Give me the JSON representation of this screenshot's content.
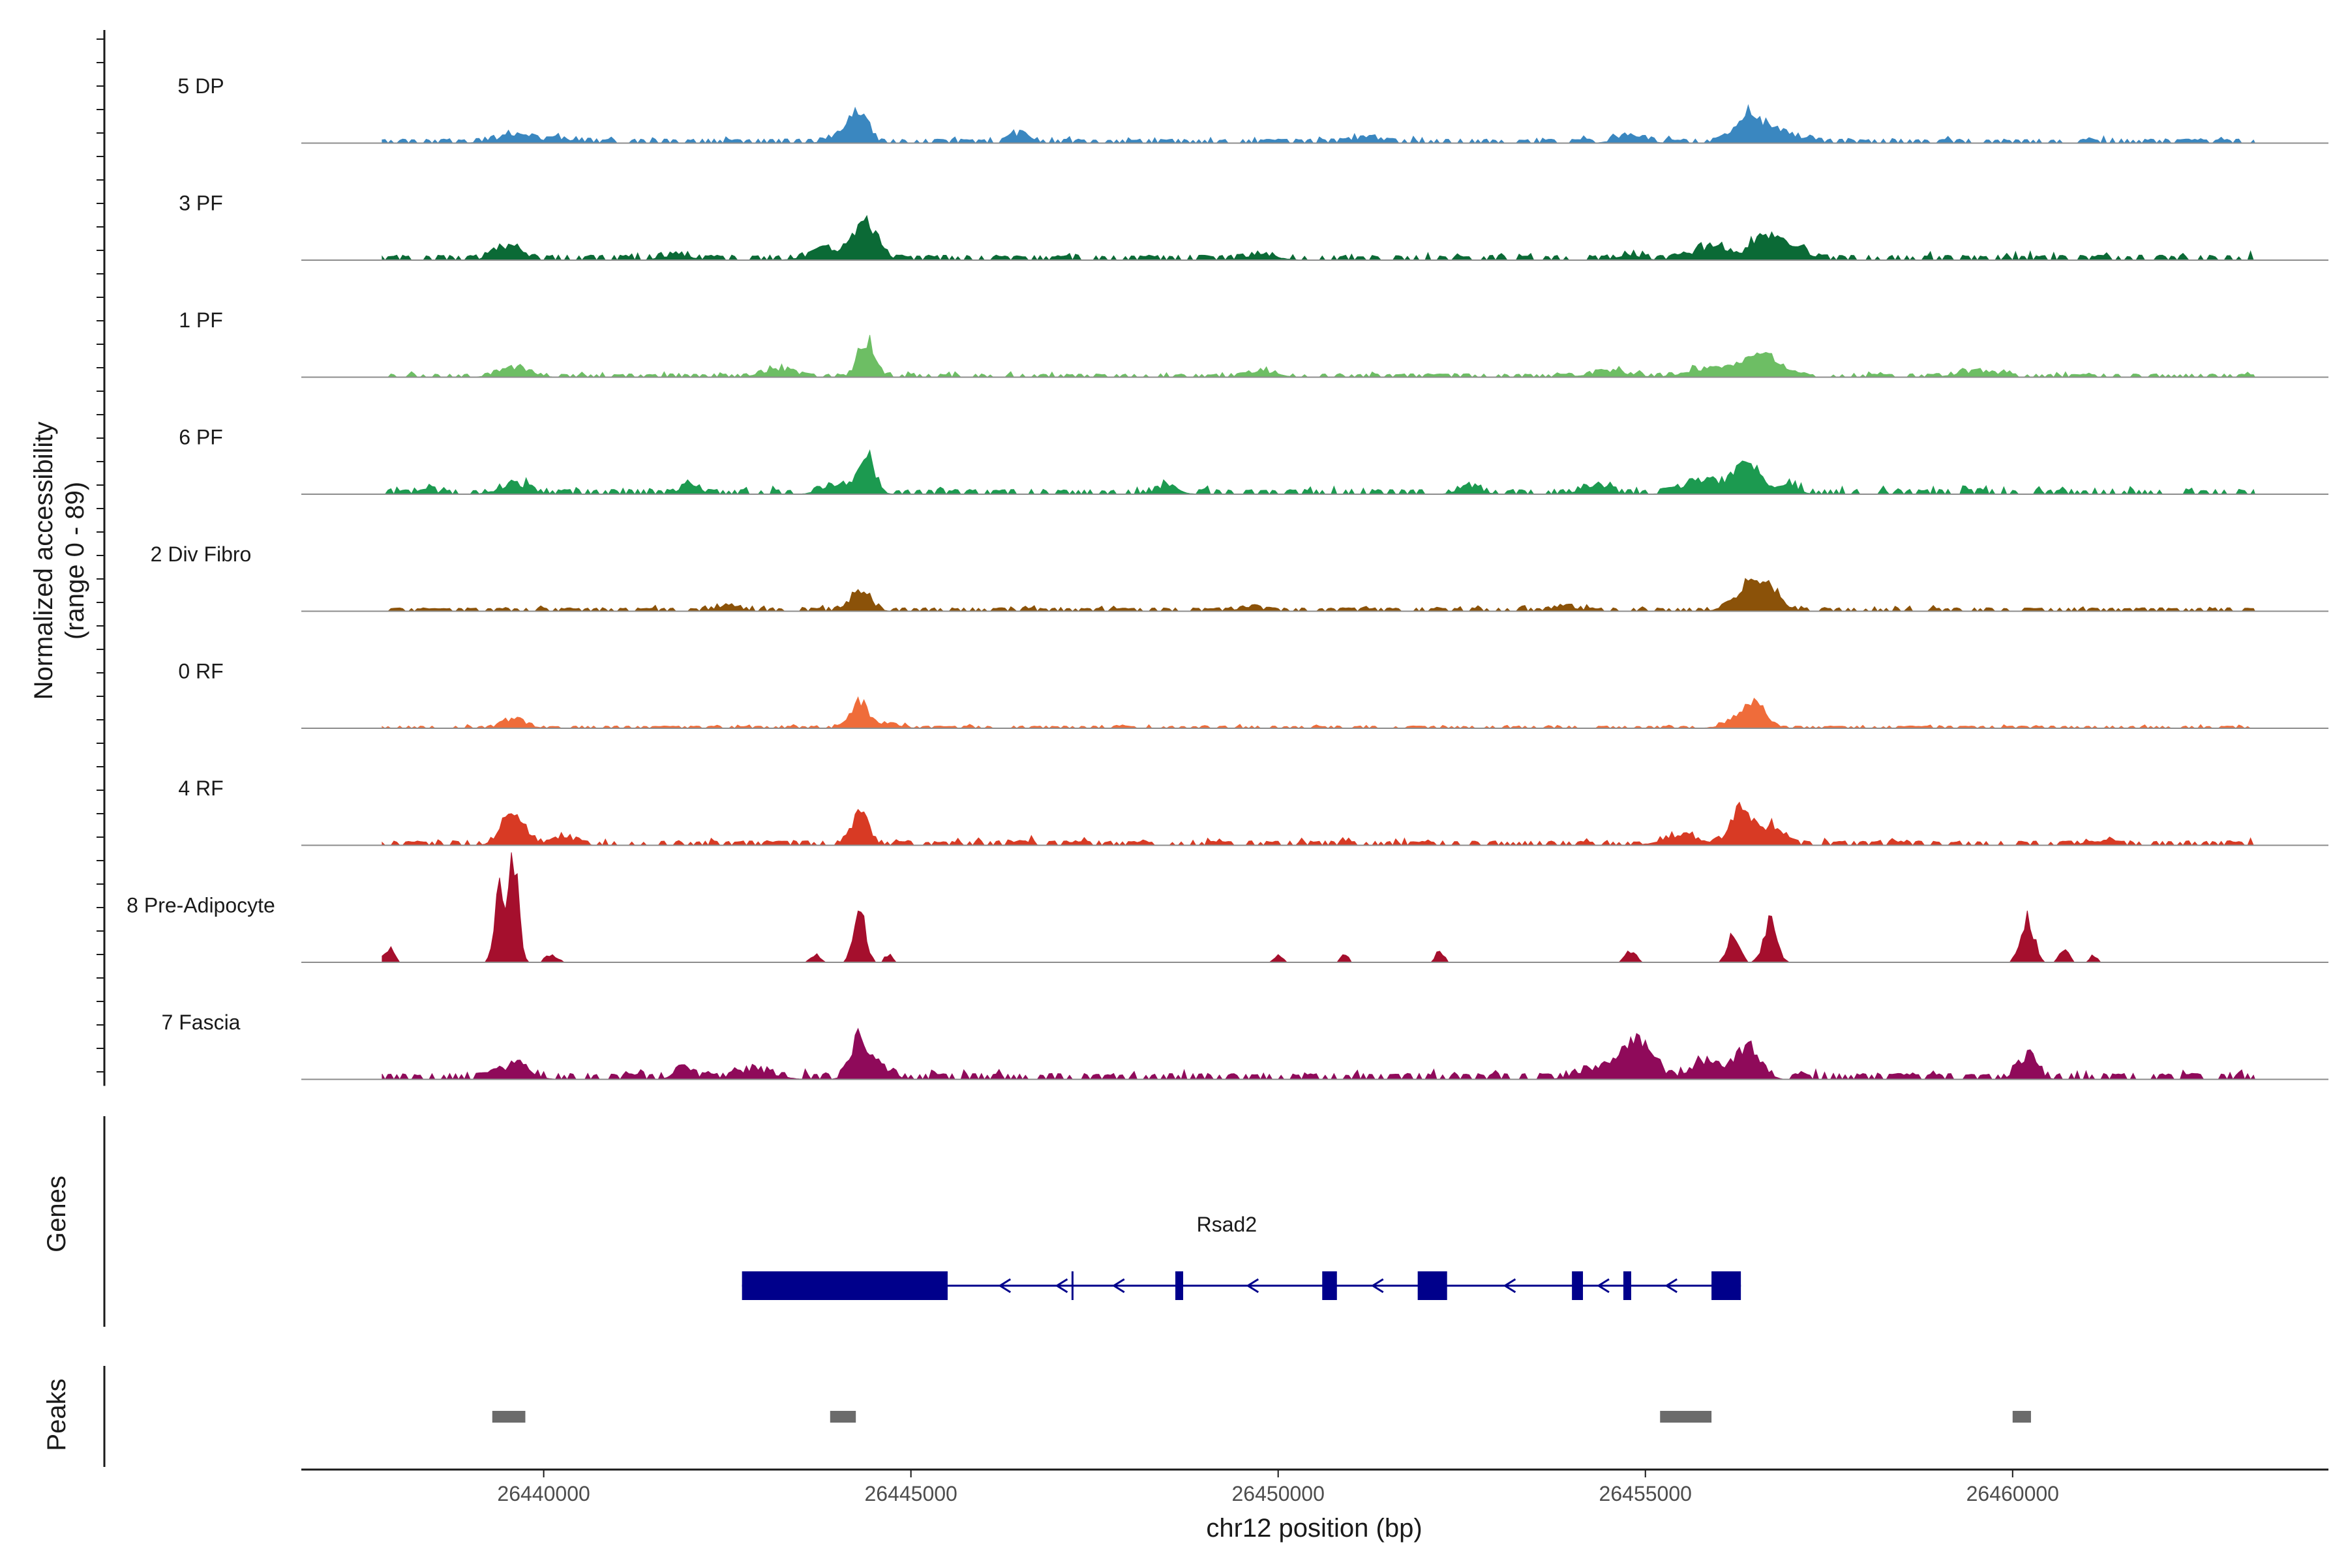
{
  "chart_data": {
    "type": "area",
    "title": "",
    "ylabel": "Normalized accessibility",
    "ylabel_range": "(range 0 - 89)",
    "xlabel": "chr12 position (bp)",
    "chromosome": "chr12",
    "xlim": [
      26436700,
      26464300
    ],
    "ylim": [
      0,
      89
    ],
    "grid": false,
    "x_ticks": [
      26440000,
      26445000,
      26450000,
      26455000,
      26460000
    ],
    "x_tick_labels": [
      "26440000",
      "26445000",
      "26450000",
      "26455000",
      "26460000"
    ],
    "data_range": [
      26437800,
      26463300
    ],
    "series": [
      {
        "name": "5 DP",
        "color": "#3a87c0",
        "baseline": 1.2,
        "noise": 2.0,
        "peaks": [
          [
            26439600,
            5,
            260
          ],
          [
            26440300,
            2.5,
            200
          ],
          [
            26444300,
            22,
            120
          ],
          [
            26444050,
            7,
            150
          ],
          [
            26446500,
            7,
            120
          ],
          [
            26451200,
            3.5,
            200
          ],
          [
            26454800,
            4.5,
            200
          ],
          [
            26456400,
            20,
            200
          ],
          [
            26456800,
            9,
            150
          ],
          [
            26457200,
            4,
            120
          ]
        ]
      },
      {
        "name": "3 PF",
        "color": "#0b6a36",
        "baseline": 1.4,
        "noise": 2.5,
        "peaks": [
          [
            26439500,
            11,
            170
          ],
          [
            26443900,
            7,
            250
          ],
          [
            26444400,
            27,
            150
          ],
          [
            26441800,
            4,
            180
          ],
          [
            26449800,
            4,
            200
          ],
          [
            26454800,
            4,
            150
          ],
          [
            26455900,
            9,
            250
          ],
          [
            26456700,
            17,
            220
          ],
          [
            26457100,
            6,
            150
          ]
        ]
      },
      {
        "name": "1 PF",
        "color": "#6dbe64",
        "baseline": 1.0,
        "noise": 1.6,
        "peaks": [
          [
            26439600,
            7,
            200
          ],
          [
            26443200,
            6,
            200
          ],
          [
            26444400,
            26,
            110
          ],
          [
            26449800,
            4,
            200
          ],
          [
            26454500,
            4,
            250
          ],
          [
            26455900,
            7,
            300
          ],
          [
            26456600,
            16,
            220
          ],
          [
            26459500,
            4,
            250
          ]
        ]
      },
      {
        "name": "6 PF",
        "color": "#1c9a50",
        "baseline": 1.3,
        "noise": 2.5,
        "peaks": [
          [
            26439600,
            7,
            200
          ],
          [
            26438400,
            4,
            100
          ],
          [
            26442000,
            7,
            120
          ],
          [
            26444400,
            27,
            110
          ],
          [
            26444000,
            6,
            200
          ],
          [
            26448500,
            5,
            150
          ],
          [
            26452600,
            5,
            150
          ],
          [
            26454300,
            5,
            200
          ],
          [
            26455800,
            11,
            250
          ],
          [
            26456400,
            22,
            160
          ],
          [
            26456900,
            7,
            150
          ]
        ]
      },
      {
        "name": "2 Div Fibro",
        "color": "#8b5209",
        "baseline": 1.1,
        "noise": 1.6,
        "peaks": [
          [
            26444300,
            14,
            140
          ],
          [
            26442500,
            4,
            150
          ],
          [
            26449600,
            3,
            150
          ],
          [
            26453900,
            3.5,
            150
          ],
          [
            26456400,
            17,
            200
          ],
          [
            26456700,
            12,
            160
          ]
        ]
      },
      {
        "name": "0 RF",
        "color": "#ef6c3a",
        "baseline": 0.8,
        "noise": 1.0,
        "peaks": [
          [
            26439600,
            7,
            150
          ],
          [
            26444300,
            20,
            120
          ],
          [
            26444700,
            3,
            150
          ],
          [
            26456500,
            17,
            140
          ],
          [
            26456300,
            6,
            200
          ]
        ]
      },
      {
        "name": "4 RF",
        "color": "#d83a24",
        "baseline": 1.2,
        "noise": 2.2,
        "peaks": [
          [
            26439600,
            22,
            160
          ],
          [
            26440300,
            5,
            150
          ],
          [
            26444300,
            22,
            120
          ],
          [
            26446500,
            4,
            100
          ],
          [
            26455500,
            7,
            250
          ],
          [
            26456300,
            24,
            150
          ],
          [
            26456700,
            14,
            150
          ],
          [
            26461100,
            3,
            150
          ]
        ]
      },
      {
        "name": "8 Pre-Adipocyte",
        "color": "#a50f2d",
        "baseline": 0,
        "noise": 0,
        "peaks": [
          [
            26437900,
            11,
            70
          ],
          [
            26439400,
            55,
            70
          ],
          [
            26439600,
            80,
            65
          ],
          [
            26440100,
            6,
            90
          ],
          [
            26443700,
            6,
            60
          ],
          [
            26444300,
            40,
            80
          ],
          [
            26444700,
            6,
            60
          ],
          [
            26450000,
            5,
            60
          ],
          [
            26450900,
            6,
            60
          ],
          [
            26452200,
            8,
            60
          ],
          [
            26454800,
            9,
            70
          ],
          [
            26456200,
            24,
            80
          ],
          [
            26456700,
            30,
            90
          ],
          [
            26460200,
            34,
            90
          ],
          [
            26460700,
            9,
            70
          ],
          [
            26461100,
            5,
            50
          ]
        ]
      },
      {
        "name": "7 Fascia",
        "color": "#8f0a5a",
        "baseline": 1.8,
        "noise": 2.8,
        "peaks": [
          [
            26439600,
            10,
            200
          ],
          [
            26441900,
            8,
            120
          ],
          [
            26442900,
            6,
            250
          ],
          [
            26444300,
            30,
            120
          ],
          [
            26444600,
            8,
            150
          ],
          [
            26454500,
            11,
            300
          ],
          [
            26454900,
            26,
            180
          ],
          [
            26455800,
            13,
            200
          ],
          [
            26456400,
            26,
            160
          ],
          [
            26460200,
            16,
            130
          ]
        ]
      }
    ],
    "genes": {
      "panel_title": "Genes",
      "name": "Rsad2",
      "strand": "-",
      "color": "#00008b",
      "start": 26442700,
      "end": 26456300,
      "exons": [
        [
          26442700,
          26445500
        ],
        [
          26448600,
          26448700
        ],
        [
          26450600,
          26450800
        ],
        [
          26451900,
          26452300
        ],
        [
          26454000,
          26454150
        ],
        [
          26454700,
          26454800
        ],
        [
          26455900,
          26456300
        ]
      ]
    },
    "peaks_track": {
      "panel_title": "Peaks",
      "color": "#6b6b6b",
      "regions": [
        [
          26439300,
          26439750
        ],
        [
          26443900,
          26444250
        ],
        [
          26455200,
          26455900
        ],
        [
          26460000,
          26460250
        ]
      ]
    }
  }
}
